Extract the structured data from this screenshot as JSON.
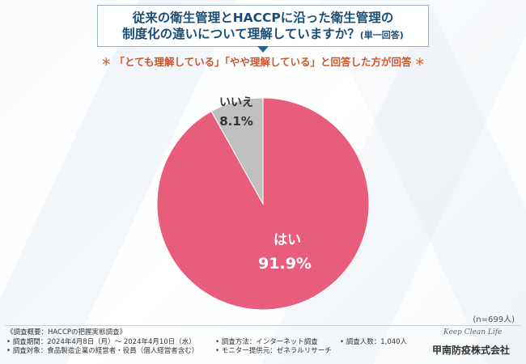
{
  "title": {
    "line1": "従来の衛生管理とHACCPに沿った衛生管理の",
    "line2": "制度化の違いについて理解していますか？",
    "note": "(単一回答)"
  },
  "subtitle": {
    "star_left": "＊",
    "text": "「とても理解している」「やや理解している」と回答した方が回答",
    "star_right": "＊"
  },
  "chart_data": {
    "type": "pie",
    "title": "従来の衛生管理とHACCPに沿った衛生管理の制度化の違いについて理解していますか？(単一回答)",
    "slices": [
      {
        "label": "はい",
        "value": 91.9,
        "display": "91.9%",
        "color": "#e85c7c"
      },
      {
        "label": "いいえ",
        "value": 8.1,
        "display": "8.1%",
        "color": "#c0c0c0"
      }
    ],
    "sample": "(n=699人)"
  },
  "footer": {
    "overview": "《調査概要：HACCPの把握実態調査》",
    "period": "• 調査期間：2024年4月8日（月）～ 2024年4月10日（水）",
    "target": "• 調査対象：食品製造企業の経営者・役員（個人経営者含む）",
    "method": "• 調査方法：インターネット調査",
    "provider": "• モニター提供元：ゼネラルリサーチ",
    "count": "• 調査人数：1,040人"
  },
  "logo": {
    "script": "Keep Clean Life",
    "company": "甲南防疫株式会社"
  }
}
